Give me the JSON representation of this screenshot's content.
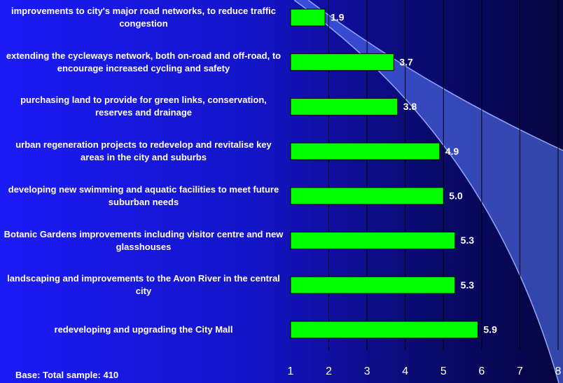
{
  "chart_data": {
    "type": "bar",
    "orientation": "horizontal",
    "categories": [
      "improvements to city's major road networks, to reduce traffic congestion",
      "extending the cycleways network, both on-road and off-road, to encourage increased cycling and safety",
      "purchasing land to provide for green links, conservation, reserves and drainage",
      "urban regeneration projects to redevelop and revitalise key areas in the city and suburbs",
      "developing new swimming and aquatic facilities to meet future suburban needs",
      "Botanic Gardens improvements including visitor centre and new glasshouses",
      "landscaping and improvements to the Avon River in the central city",
      "redeveloping and upgrading the City Mall"
    ],
    "values": [
      1.9,
      3.7,
      3.8,
      4.9,
      5.0,
      5.3,
      5.3,
      5.9
    ],
    "value_labels": [
      "1.9",
      "3.7",
      "3.8",
      "4.9",
      "5.0",
      "5.3",
      "5.3",
      "5.9"
    ],
    "color": "#00ff00",
    "xlim": [
      1,
      8
    ],
    "xticks": [
      1,
      2,
      3,
      4,
      5,
      6,
      7,
      8
    ],
    "grid": true,
    "footnote": "Base: Total sample: 410"
  }
}
